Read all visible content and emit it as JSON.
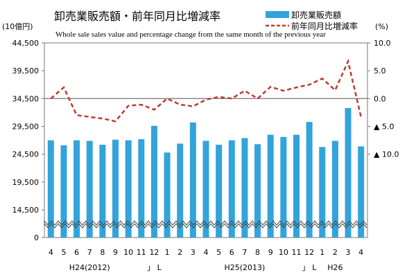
{
  "chart_data": {
    "type": "bar",
    "title": "卸売業販売額・前年同月比増減率",
    "subtitle": "Whole sale sales value and percentage change  from the same month of the previous year",
    "y_unit_left": "(10億円)",
    "y_unit_right": "(%)",
    "categories": [
      "4",
      "5",
      "6",
      "7",
      "8",
      "9",
      "10",
      "11",
      "12",
      "1",
      "2",
      "3",
      "4",
      "5",
      "6",
      "7",
      "8",
      "9",
      "10",
      "11",
      "12",
      "1",
      "2",
      "3",
      "4"
    ],
    "period_labels": [
      {
        "text": "H24(2012)",
        "after_index": 3
      },
      {
        "text": "」 L",
        "after_index": 8
      },
      {
        "text": "H25(2013)",
        "after_index": 15
      },
      {
        "text": "」 L",
        "after_index": 20
      },
      {
        "text": "H26",
        "after_index": 22
      }
    ],
    "left_axis": {
      "ylim": [
        0,
        44500
      ],
      "ticks": [
        0,
        14500,
        19500,
        24500,
        29500,
        34500,
        39500,
        44500
      ],
      "tick_labels": [
        "0",
        "14,500",
        "19,500",
        "24,500",
        "29,500",
        "34,500",
        "39,500",
        "44,500"
      ],
      "break_at": 10000
    },
    "right_axis": {
      "ylim": [
        -25,
        10
      ],
      "ticks": [
        10,
        5,
        0,
        -5,
        -10
      ],
      "tick_labels": [
        "10.0",
        "5.0",
        "0.0",
        "▲ 5.0",
        "▲ 10.0"
      ]
    },
    "series": [
      {
        "name": "卸売業販売額",
        "type": "bar",
        "axis": "left",
        "color": "#33a3dc",
        "values": [
          27000,
          26100,
          27000,
          26900,
          26200,
          27100,
          27000,
          27200,
          29600,
          24800,
          26400,
          30200,
          26900,
          26200,
          27000,
          27400,
          26300,
          28000,
          27600,
          28000,
          30300,
          25800,
          26900,
          32800,
          25900
        ]
      },
      {
        "name": "前年同月比増減率",
        "type": "line",
        "axis": "right",
        "color": "#c0392b",
        "style": "dashed",
        "values": [
          0.0,
          2.0,
          -3.0,
          -3.3,
          -3.6,
          -4.1,
          -1.3,
          -1.1,
          -2.0,
          0.0,
          -1.1,
          -1.4,
          -0.2,
          0.3,
          0.0,
          1.4,
          0.0,
          2.1,
          1.4,
          2.0,
          2.5,
          3.6,
          1.5,
          6.7,
          -3.3
        ]
      }
    ],
    "legend_position": "top-right",
    "grid": false
  }
}
